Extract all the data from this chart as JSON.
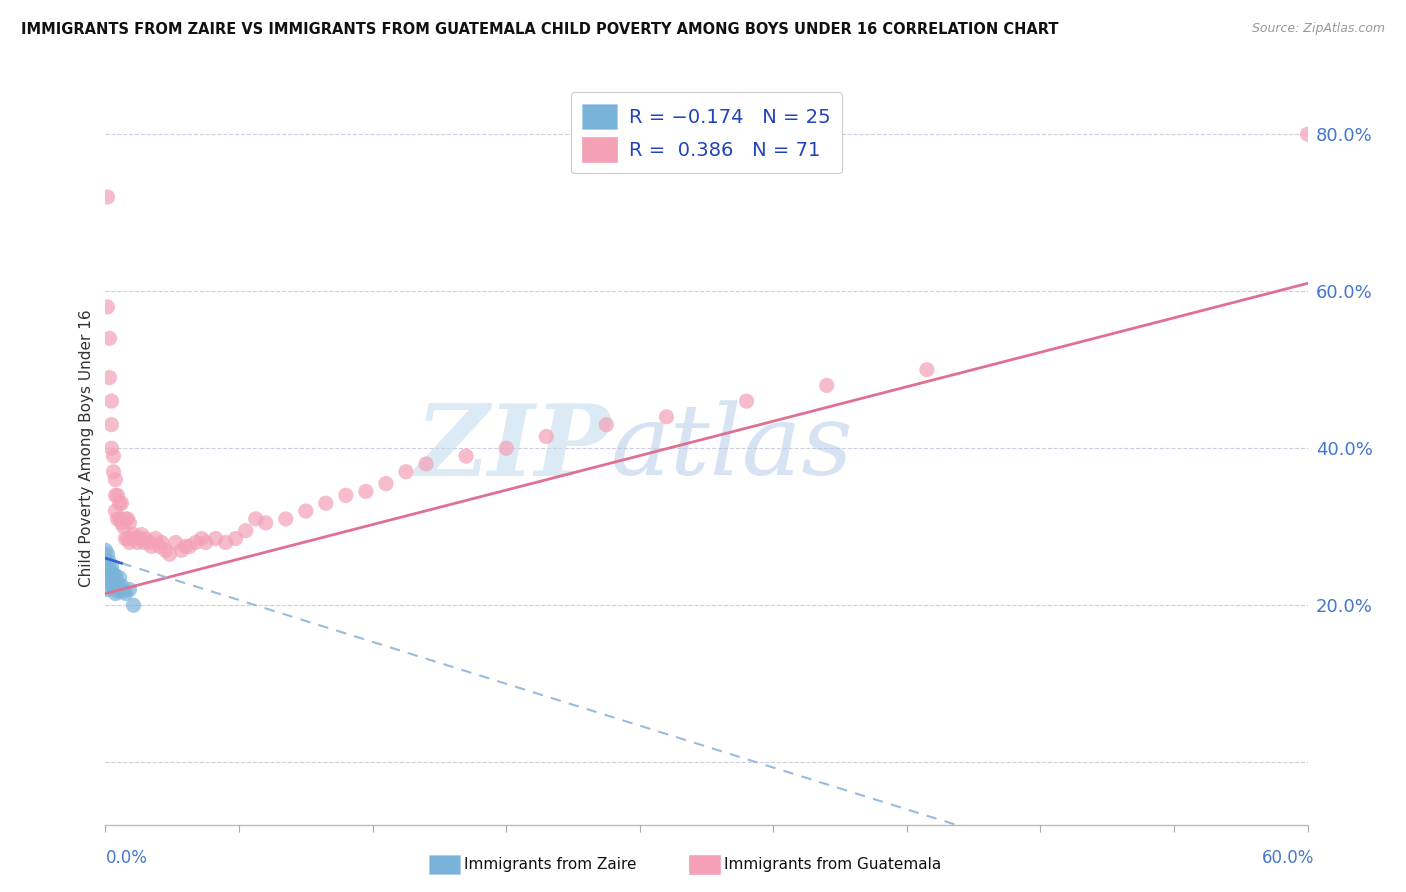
{
  "title": "IMMIGRANTS FROM ZAIRE VS IMMIGRANTS FROM GUATEMALA CHILD POVERTY AMONG BOYS UNDER 16 CORRELATION CHART",
  "source": "Source: ZipAtlas.com",
  "ylabel": "Child Poverty Among Boys Under 16",
  "watermark_part1": "ZIP",
  "watermark_part2": "atlas",
  "xlabel_bottom_left": "0.0%",
  "xlabel_bottom_right": "60.0%",
  "zaire_color": "#7ab3d9",
  "guatemala_color": "#f4a0b5",
  "zaire_line_solid_color": "#3366cc",
  "zaire_line_dashed_color": "#99bbdd",
  "guatemala_line_color": "#e07090",
  "background_color": "#ffffff",
  "grid_color": "#c8c8dc",
  "xlim": [
    0.0,
    0.6
  ],
  "ylim": [
    -0.08,
    0.88
  ],
  "y_ticks": [
    0.0,
    0.2,
    0.4,
    0.6,
    0.8
  ],
  "y_tick_labels": [
    "",
    "20.0%",
    "40.0%",
    "60.0%",
    "80.0%"
  ],
  "zaire_x": [
    0.0,
    0.0,
    0.001,
    0.001,
    0.001,
    0.002,
    0.002,
    0.002,
    0.003,
    0.003,
    0.003,
    0.004,
    0.004,
    0.005,
    0.005,
    0.005,
    0.006,
    0.006,
    0.007,
    0.007,
    0.008,
    0.009,
    0.01,
    0.012,
    0.014
  ],
  "zaire_y": [
    0.27,
    0.25,
    0.265,
    0.24,
    0.22,
    0.255,
    0.245,
    0.235,
    0.25,
    0.24,
    0.225,
    0.24,
    0.225,
    0.238,
    0.23,
    0.215,
    0.228,
    0.218,
    0.235,
    0.22,
    0.225,
    0.218,
    0.215,
    0.22,
    0.2
  ],
  "guatemala_x": [
    0.0,
    0.001,
    0.001,
    0.002,
    0.002,
    0.003,
    0.003,
    0.003,
    0.004,
    0.004,
    0.005,
    0.005,
    0.005,
    0.006,
    0.006,
    0.007,
    0.007,
    0.008,
    0.008,
    0.009,
    0.01,
    0.01,
    0.011,
    0.011,
    0.012,
    0.012,
    0.013,
    0.014,
    0.015,
    0.016,
    0.017,
    0.018,
    0.019,
    0.02,
    0.022,
    0.023,
    0.025,
    0.027,
    0.028,
    0.03,
    0.032,
    0.035,
    0.038,
    0.04,
    0.042,
    0.045,
    0.048,
    0.05,
    0.055,
    0.06,
    0.065,
    0.07,
    0.075,
    0.08,
    0.09,
    0.1,
    0.11,
    0.12,
    0.13,
    0.14,
    0.15,
    0.16,
    0.18,
    0.2,
    0.22,
    0.25,
    0.28,
    0.32,
    0.36,
    0.41,
    0.6
  ],
  "guatemala_y": [
    0.26,
    0.72,
    0.58,
    0.54,
    0.49,
    0.46,
    0.43,
    0.4,
    0.39,
    0.37,
    0.36,
    0.34,
    0.32,
    0.34,
    0.31,
    0.33,
    0.31,
    0.33,
    0.305,
    0.3,
    0.31,
    0.285,
    0.31,
    0.285,
    0.305,
    0.28,
    0.285,
    0.29,
    0.285,
    0.28,
    0.285,
    0.29,
    0.28,
    0.285,
    0.28,
    0.275,
    0.285,
    0.275,
    0.28,
    0.27,
    0.265,
    0.28,
    0.27,
    0.275,
    0.275,
    0.28,
    0.285,
    0.28,
    0.285,
    0.28,
    0.285,
    0.295,
    0.31,
    0.305,
    0.31,
    0.32,
    0.33,
    0.34,
    0.345,
    0.355,
    0.37,
    0.38,
    0.39,
    0.4,
    0.415,
    0.43,
    0.44,
    0.46,
    0.48,
    0.5,
    0.8
  ],
  "zaire_line_x0": 0.0,
  "zaire_line_x_solid_end": 0.008,
  "zaire_line_x_dashed_end": 0.5,
  "zaire_line_y0": 0.26,
  "zaire_line_slope": -0.8,
  "guatemala_line_x0": 0.0,
  "guatemala_line_x1": 0.6,
  "guatemala_line_y0": 0.215,
  "guatemala_line_y1": 0.61
}
